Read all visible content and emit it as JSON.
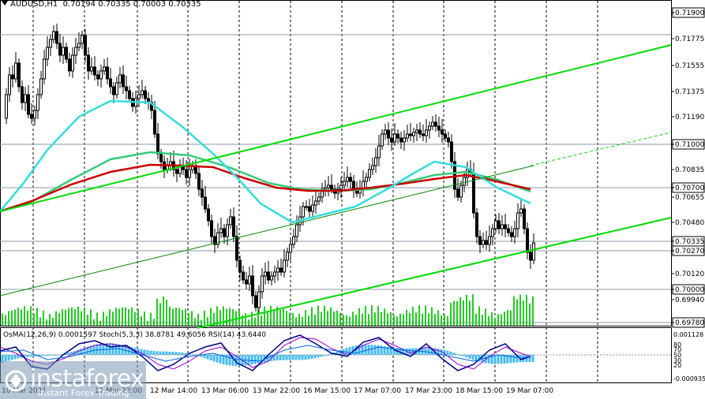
{
  "header": {
    "symbol": "AUDUSD,H1",
    "ohlc": "0.70194 0.70335 0.70003 0.70335"
  },
  "price_axis": {
    "labels": [
      "0.71900",
      "0.71775",
      "0.71555",
      "0.71375",
      "0.71190",
      "0.71000",
      "0.70835",
      "0.70700",
      "0.70655",
      "0.70480",
      "0.70335",
      "0.70270",
      "0.70120",
      "0.70000",
      "0.69940",
      "0.69780"
    ],
    "highlighted": [
      "0.71900",
      "0.71000",
      "0.70700",
      "0.70335",
      "0.70270",
      "0.70000",
      "0.69780"
    ]
  },
  "time_axis": {
    "labels": [
      "10 Mar 2021",
      "12 Mar 14:00",
      "13 Mar 06:00",
      "13 Mar 22:00",
      "16 Mar 15:00",
      "17 Mar 07:00",
      "17 Mar 23:00",
      "18 Mar 15:00",
      "19 Mar 07:00"
    ],
    "partial_label": "11 Mar 22:00"
  },
  "indicator": {
    "title": "OsMA(12,26,9) 0.0001597  Stoch(5,3,3) 38.8781 49.6056  RSI(14) 43.6440",
    "axis_labels": [
      "0.001128",
      "80",
      "70",
      "50",
      "30",
      "20",
      "-0.000935"
    ]
  },
  "colors": {
    "background": "#ffffff",
    "grid": "#000000",
    "candles": "#000000",
    "channel": "#00dd00",
    "ma_red": "#cc0000",
    "ma_green": "#33cc77",
    "ma_cyan": "#33dddd",
    "volume": "#22cc22",
    "osma": "#44bbee",
    "stoch_main": "#000088",
    "stoch_signal": "#9900cc",
    "rsi": "#0066dd"
  },
  "watermark": {
    "brand": "instaforex",
    "tagline": "Instant Forex Trading"
  }
}
